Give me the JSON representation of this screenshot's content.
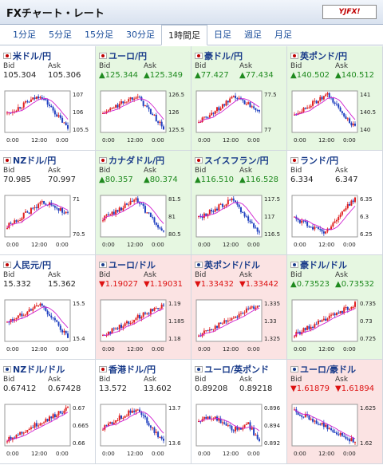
{
  "header": {
    "title": "FXチャート・レート",
    "logo": "YJFX!"
  },
  "tabs": [
    {
      "label": "1分足",
      "active": false
    },
    {
      "label": "5分足",
      "active": false
    },
    {
      "label": "15分足",
      "active": false
    },
    {
      "label": "30分足",
      "active": false
    },
    {
      "label": "1時間足",
      "active": true
    },
    {
      "label": "日足",
      "active": false
    },
    {
      "label": "週足",
      "active": false
    },
    {
      "label": "月足",
      "active": false
    }
  ],
  "labels": {
    "bid": "Bid",
    "ask": "Ask"
  },
  "cells": [
    {
      "name": "米ドル/円",
      "bid": "105.304",
      "ask": "105.306",
      "dir": "nt",
      "bg": "white",
      "flag": "#c00000",
      "yt": [
        "107",
        "106",
        "105.5"
      ],
      "xt": [
        "0:00",
        "12:00",
        "0:00"
      ],
      "shape": "rise-fall"
    },
    {
      "name": "ユーロ/円",
      "bid": "▲125.344",
      "ask": "▲125.349",
      "dir": "up",
      "bg": "green",
      "flag": "#c00000",
      "yt": [
        "126.5",
        "126",
        "125.5"
      ],
      "xt": [
        "0:00",
        "12:00",
        "0:00"
      ],
      "shape": "rise-fall"
    },
    {
      "name": "豪ドル/円",
      "bid": "▲77.427",
      "ask": "▲77.434",
      "dir": "up",
      "bg": "green",
      "flag": "#c00000",
      "yt": [
        "77.5",
        "77"
      ],
      "xt": [
        "0:00",
        "12:00",
        "0:00"
      ],
      "shape": "rise-mid"
    },
    {
      "name": "英ポンド/円",
      "bid": "▲140.502",
      "ask": "▲140.512",
      "dir": "up",
      "bg": "green",
      "flag": "#c00000",
      "yt": [
        "141",
        "140.5",
        "140"
      ],
      "xt": [
        "0:00",
        "12:00",
        "0:00"
      ],
      "shape": "rise-fall"
    },
    {
      "name": "NZドル/円",
      "bid": "70.985",
      "ask": "70.997",
      "dir": "nt",
      "bg": "white",
      "flag": "#c00000",
      "yt": [
        "71",
        "70.5"
      ],
      "xt": [
        "0:00",
        "12:00",
        "0:00"
      ],
      "shape": "rise-mid"
    },
    {
      "name": "カナダドル/円",
      "bid": "▲80.357",
      "ask": "▲80.374",
      "dir": "up",
      "bg": "green",
      "flag": "#c00000",
      "yt": [
        "81.5",
        "81",
        "80.5"
      ],
      "xt": [
        "0:00",
        "12:00",
        "0:00"
      ],
      "shape": "rise-fall"
    },
    {
      "name": "スイスフラン/円",
      "bid": "▲116.510",
      "ask": "▲116.528",
      "dir": "up",
      "bg": "green",
      "flag": "#c00000",
      "yt": [
        "117.5",
        "117",
        "116.5"
      ],
      "xt": [
        "0:00",
        "12:00",
        "0:00"
      ],
      "shape": "rise-fall"
    },
    {
      "name": "ランド/円",
      "bid": "6.334",
      "ask": "6.347",
      "dir": "nt",
      "bg": "white",
      "flag": "#c00000",
      "yt": [
        "6.35",
        "6.3",
        "6.25"
      ],
      "xt": [
        "0:00",
        "12:00",
        "0:00"
      ],
      "shape": "dip-rise"
    },
    {
      "name": "人民元/円",
      "bid": "15.332",
      "ask": "15.362",
      "dir": "nt",
      "bg": "white",
      "flag": "#c00000",
      "yt": [
        "15.5",
        "15.4"
      ],
      "xt": [
        "0:00",
        "12:00",
        "0:00"
      ],
      "shape": "rise-fall"
    },
    {
      "name": "ユーロ/ドル",
      "bid": "▼1.19027",
      "ask": "▼1.19031",
      "dir": "dn",
      "bg": "red",
      "flag": "#1a3c8a",
      "yt": [
        "1.19",
        "1.185",
        "1.18"
      ],
      "xt": [
        "0:00",
        "12:00",
        "0:00"
      ],
      "shape": "rise"
    },
    {
      "name": "英ポンド/ドル",
      "bid": "▼1.33432",
      "ask": "▼1.33442",
      "dir": "dn",
      "bg": "red",
      "flag": "#1a3c8a",
      "yt": [
        "1.335",
        "1.33",
        "1.325"
      ],
      "xt": [
        "0:00",
        "12:00",
        "0:00"
      ],
      "shape": "rise"
    },
    {
      "name": "豪ドル/ドル",
      "bid": "▲0.73523",
      "ask": "▲0.73532",
      "dir": "up",
      "bg": "green",
      "flag": "#1a3c8a",
      "yt": [
        "0.735",
        "0.73",
        "0.725"
      ],
      "xt": [
        "0:00",
        "12:00",
        "0:00"
      ],
      "shape": "rise"
    },
    {
      "name": "NZドル/ドル",
      "bid": "0.67412",
      "ask": "0.67428",
      "dir": "nt",
      "bg": "white",
      "flag": "#1a3c8a",
      "yt": [
        "0.67",
        "0.665",
        "0.66"
      ],
      "xt": [
        "0:00",
        "12:00",
        "0:00"
      ],
      "shape": "rise"
    },
    {
      "name": "香港ドル/円",
      "bid": "13.572",
      "ask": "13.602",
      "dir": "nt",
      "bg": "white",
      "flag": "#c00000",
      "yt": [
        "13.7",
        "13.6"
      ],
      "xt": [
        "0:00",
        "12:00",
        "0:00"
      ],
      "shape": "rise-fall"
    },
    {
      "name": "ユーロ/英ポンド",
      "bid": "0.89208",
      "ask": "0.89218",
      "dir": "nt",
      "bg": "white",
      "flag": "#1a3c8a",
      "yt": [
        "0.896",
        "0.894",
        "0.892"
      ],
      "xt": [
        "0:00",
        "12:00",
        "0:00"
      ],
      "shape": "flat-drop"
    },
    {
      "name": "ユーロ/豪ドル",
      "bid": "▼1.61879",
      "ask": "▼1.61894",
      "dir": "dn",
      "bg": "red",
      "flag": "#1a3c8a",
      "yt": [
        "1.625",
        "1.62"
      ],
      "xt": [
        "0:00",
        "12:00",
        "0:00"
      ],
      "shape": "fall"
    }
  ]
}
